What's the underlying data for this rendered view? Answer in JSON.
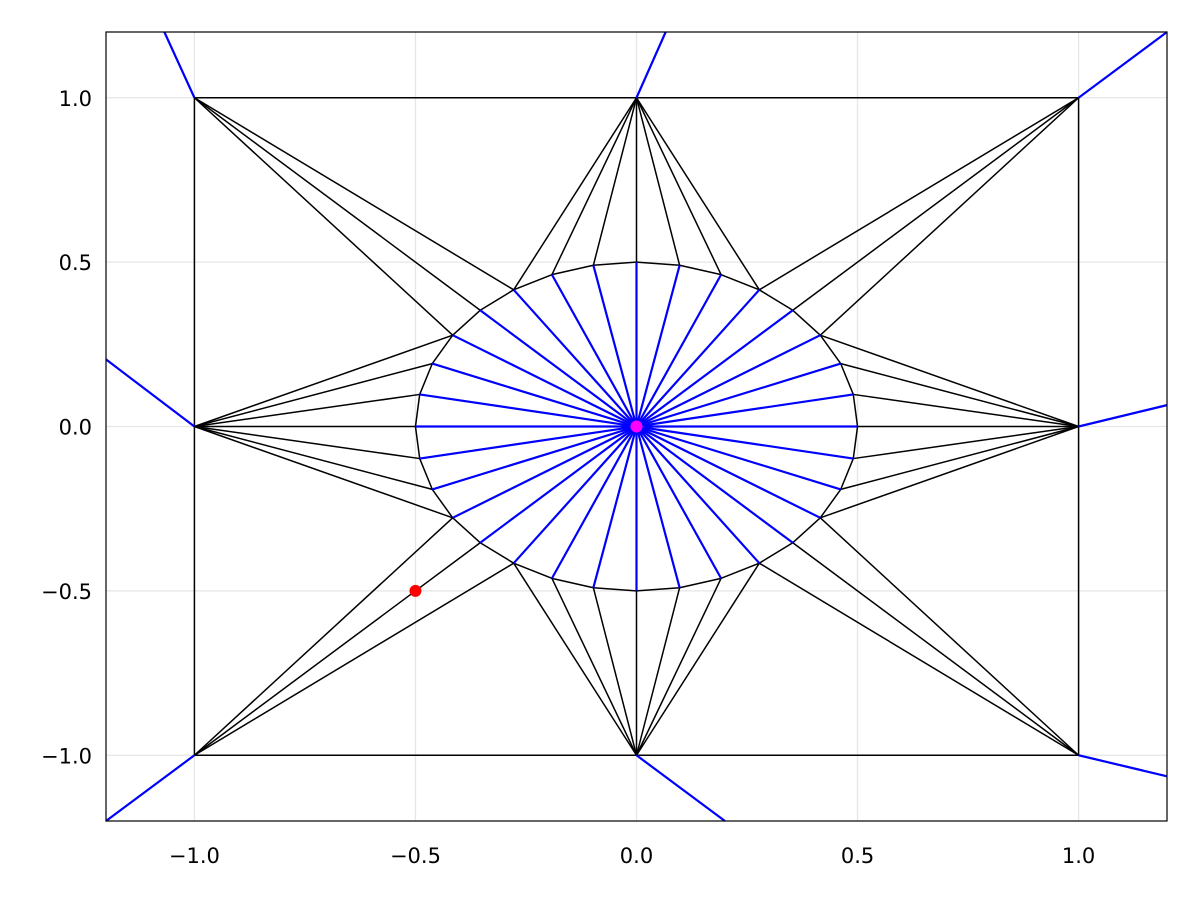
{
  "chart_data": {
    "type": "line",
    "title": "",
    "xlabel": "",
    "ylabel": "",
    "xlim": [
      -1.2,
      1.2
    ],
    "ylim": [
      -1.2,
      1.2
    ],
    "grid": true,
    "x_ticks": [
      -1.0,
      -0.5,
      0.0,
      0.5,
      1.0
    ],
    "x_tick_labels": [
      "−1.0",
      "−0.5",
      "0.0",
      "0.5",
      "1.0"
    ],
    "y_ticks": [
      -1.0,
      -0.5,
      0.0,
      0.5,
      1.0
    ],
    "y_tick_labels": [
      "−1.0",
      "−0.5",
      "0.0",
      "0.5",
      "1.0"
    ],
    "boundary_square": [
      [
        -1,
        -1
      ],
      [
        0,
        -1
      ],
      [
        1,
        -1
      ],
      [
        1,
        0
      ],
      [
        1,
        1
      ],
      [
        0,
        1
      ],
      [
        -1,
        1
      ],
      [
        -1,
        0
      ]
    ],
    "circle": {
      "center": [
        0,
        0
      ],
      "radius": 0.5,
      "n_points": 32
    },
    "triangulation_color": "#000000",
    "voronoi_color": "#0000ff",
    "voronoi_rays": [
      [
        [
          -1,
          1
        ],
        [
          -1.068,
          1.2
        ]
      ],
      [
        [
          0,
          1
        ],
        [
          0.066,
          1.2
        ]
      ],
      [
        [
          1,
          1
        ],
        [
          1.2,
          1.2
        ]
      ],
      [
        [
          -1,
          0
        ],
        [
          -1.2,
          0.204
        ]
      ],
      [
        [
          1,
          0
        ],
        [
          1.2,
          0.065
        ]
      ],
      [
        [
          -1,
          -1
        ],
        [
          -1.2,
          -1.2
        ]
      ],
      [
        [
          0,
          -1
        ],
        [
          0.2,
          -1.2
        ]
      ],
      [
        [
          1,
          -1
        ],
        [
          1.2,
          -1.064
        ]
      ]
    ],
    "points": [
      {
        "x": -0.5,
        "y": -0.5,
        "color": "#ff0000"
      },
      {
        "x": 0.0,
        "y": 0.0,
        "color": "#ff00ff"
      }
    ]
  }
}
